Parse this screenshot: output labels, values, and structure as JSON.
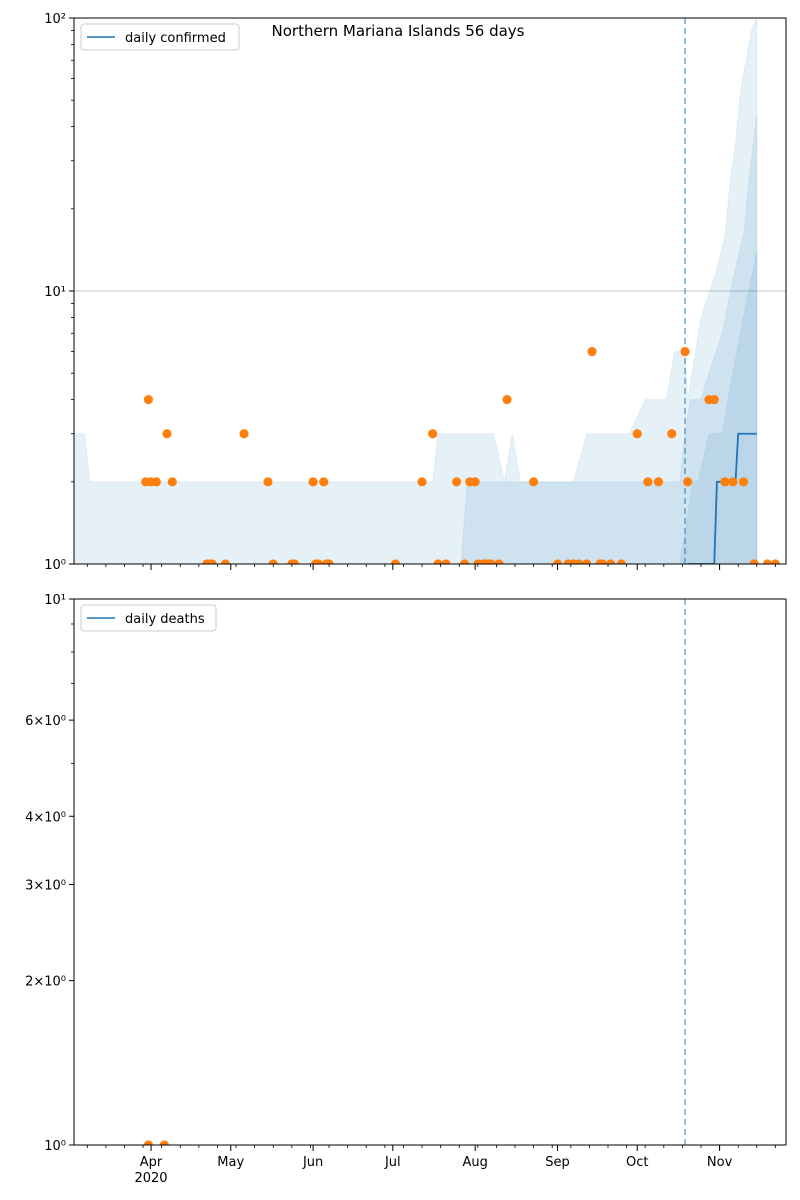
{
  "chart_data": [
    {
      "type": "line",
      "title": "Northern Mariana Islands 56 days",
      "y_scale": "log",
      "ylim": [
        1,
        100
      ],
      "y_ticks": [
        {
          "value": 1,
          "label": "10⁰"
        },
        {
          "value": 10,
          "label": "10¹"
        },
        {
          "value": 100,
          "label": "10²"
        }
      ],
      "xlim": [
        "2020-03-03",
        "2020-11-26"
      ],
      "grid_y": true,
      "legend": {
        "placement": "upper-left",
        "entries": [
          {
            "label": "daily confirmed",
            "color": "#1f77b4"
          }
        ]
      },
      "vline": {
        "x": "2020-10-19",
        "color": "#1f77b4",
        "style": "dashed"
      },
      "series": [
        {
          "name": "daily confirmed",
          "kind": "line",
          "color": "#1f77b4",
          "x": [
            "2020-10-20",
            "2020-10-30",
            "2020-10-31",
            "2020-11-07",
            "2020-11-08",
            "2020-11-15"
          ],
          "y": [
            1,
            1,
            2,
            2,
            3,
            3
          ]
        },
        {
          "kind": "scatter",
          "color": "#ff7f0e",
          "x": [
            "2020-03-30",
            "2020-03-31",
            "2020-04-01",
            "2020-04-03",
            "2020-04-07",
            "2020-04-09",
            "2020-04-22",
            "2020-04-23",
            "2020-04-24",
            "2020-04-29",
            "2020-05-06",
            "2020-05-15",
            "2020-05-17",
            "2020-05-24",
            "2020-05-25",
            "2020-06-01",
            "2020-06-02",
            "2020-06-03",
            "2020-06-05",
            "2020-06-06",
            "2020-06-07",
            "2020-07-02",
            "2020-07-12",
            "2020-07-16",
            "2020-07-18",
            "2020-07-21",
            "2020-07-25",
            "2020-07-28",
            "2020-07-30",
            "2020-08-01",
            "2020-08-02",
            "2020-08-04",
            "2020-08-05",
            "2020-08-06",
            "2020-08-07",
            "2020-08-10",
            "2020-08-13",
            "2020-08-23",
            "2020-09-01",
            "2020-09-05",
            "2020-09-07",
            "2020-09-09",
            "2020-09-12",
            "2020-09-14",
            "2020-09-17",
            "2020-09-18",
            "2020-09-21",
            "2020-09-25",
            "2020-10-01",
            "2020-10-05",
            "2020-10-09",
            "2020-10-14",
            "2020-10-19",
            "2020-10-20",
            "2020-10-28",
            "2020-10-30",
            "2020-11-03",
            "2020-11-06",
            "2020-11-10",
            "2020-11-14",
            "2020-11-19",
            "2020-11-22"
          ],
          "y": [
            2,
            4,
            2,
            2,
            3,
            2,
            1,
            1,
            1,
            1,
            3,
            2,
            1,
            1,
            1,
            2,
            1,
            1,
            2,
            1,
            1,
            1,
            2,
            3,
            1,
            1,
            2,
            1,
            2,
            2,
            1,
            1,
            1,
            1,
            1,
            1,
            4,
            2,
            1,
            1,
            1,
            1,
            1,
            6,
            1,
            1,
            1,
            1,
            3,
            2,
            2,
            3,
            6,
            2,
            4,
            4,
            2,
            2,
            2,
            1,
            1,
            1
          ]
        },
        {
          "name": "band-outer",
          "kind": "area",
          "color": "#1f77b4",
          "opacity": 0.11,
          "x": [
            "2020-03-03",
            "2020-03-06",
            "2020-03-07",
            "2020-03-09",
            "2020-03-27",
            "2020-03-29",
            "2020-04-06",
            "2020-04-08",
            "2020-04-10",
            "2020-06-18",
            "2020-06-19",
            "2020-06-22",
            "2020-06-23",
            "2020-06-26",
            "2020-07-01",
            "2020-07-02",
            "2020-07-14",
            "2020-07-16",
            "2020-07-18",
            "2020-07-21",
            "2020-07-23",
            "2020-08-08",
            "2020-08-12",
            "2020-08-15",
            "2020-08-18",
            "2020-08-26",
            "2020-08-28",
            "2020-09-07",
            "2020-09-12",
            "2020-09-20",
            "2020-09-26",
            "2020-09-28",
            "2020-10-04",
            "2020-10-06",
            "2020-10-12",
            "2020-10-15",
            "2020-10-19",
            "2020-10-20",
            "2020-10-25",
            "2020-10-31",
            "2020-11-03",
            "2020-11-05",
            "2020-11-07",
            "2020-11-09",
            "2020-11-11",
            "2020-11-13",
            "2020-11-15"
          ],
          "y": [
            3,
            3,
            3,
            2,
            2,
            2,
            2,
            2,
            2,
            2,
            2,
            2,
            2,
            2,
            2,
            2,
            2,
            2,
            3,
            3,
            3,
            3,
            2,
            3,
            2,
            2,
            2,
            2,
            3,
            3,
            3,
            3,
            4,
            4,
            4,
            6,
            6,
            4,
            8,
            12,
            16,
            25,
            35,
            55,
            70,
            90,
            100
          ]
        },
        {
          "name": "band-middle",
          "kind": "area",
          "color": "#1f77b4",
          "opacity": 0.11,
          "x": [
            "2020-07-27",
            "2020-07-29",
            "2020-08-10",
            "2020-09-12",
            "2020-09-29",
            "2020-10-11",
            "2020-10-17",
            "2020-10-19",
            "2020-10-21",
            "2020-10-25",
            "2020-10-28",
            "2020-11-02",
            "2020-11-06",
            "2020-11-10",
            "2020-11-12",
            "2020-11-15"
          ],
          "y": [
            1.1,
            2,
            2,
            2,
            2,
            2,
            2,
            3,
            4,
            4,
            5,
            7,
            11,
            16,
            25,
            44
          ]
        },
        {
          "name": "band-inner",
          "kind": "area",
          "color": "#1f77b4",
          "opacity": 0.11,
          "x": [
            "2020-10-17",
            "2020-10-19",
            "2020-10-22",
            "2020-10-24",
            "2020-10-28",
            "2020-11-02",
            "2020-11-06",
            "2020-11-10",
            "2020-11-15"
          ],
          "y": [
            1,
            1.3,
            2,
            2,
            3,
            3,
            5,
            8,
            14
          ]
        }
      ]
    },
    {
      "type": "line",
      "y_scale": "log",
      "ylim": [
        1,
        10
      ],
      "y_ticks": [
        {
          "value": 1,
          "label": "10⁰"
        },
        {
          "value": 2,
          "label": "2×10⁰"
        },
        {
          "value": 3,
          "label": "3×10⁰"
        },
        {
          "value": 4,
          "label": "4×10⁰"
        },
        {
          "value": 6,
          "label": "6×10⁰"
        },
        {
          "value": 10,
          "label": "10¹"
        }
      ],
      "xlim": [
        "2020-03-03",
        "2020-11-26"
      ],
      "x_ticks": [
        {
          "value": "2020-04-01",
          "label": "Apr",
          "sublabel": "2020"
        },
        {
          "value": "2020-05-01",
          "label": "May"
        },
        {
          "value": "2020-06-01",
          "label": "Jun"
        },
        {
          "value": "2020-07-01",
          "label": "Jul"
        },
        {
          "value": "2020-08-01",
          "label": "Aug"
        },
        {
          "value": "2020-09-01",
          "label": "Sep"
        },
        {
          "value": "2020-10-01",
          "label": "Oct"
        },
        {
          "value": "2020-11-01",
          "label": "Nov"
        }
      ],
      "grid_y": false,
      "legend": {
        "placement": "upper-left",
        "entries": [
          {
            "label": "daily deaths",
            "color": "#1f77b4"
          }
        ]
      },
      "vline": {
        "x": "2020-10-19",
        "color": "#1f77b4",
        "style": "dashed"
      },
      "series": [
        {
          "kind": "scatter",
          "color": "#ff7f0e",
          "x": [
            "2020-03-31",
            "2020-04-06"
          ],
          "y": [
            1,
            1
          ]
        }
      ]
    }
  ]
}
